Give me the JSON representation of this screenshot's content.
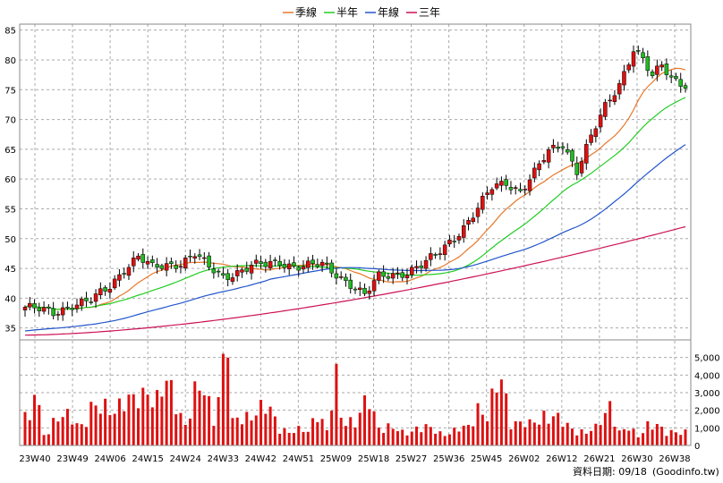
{
  "chart_data": {
    "type": "candlestick",
    "legend": [
      {
        "name": "季線",
        "color": "#e8782a"
      },
      {
        "name": "半年",
        "color": "#22cc22"
      },
      {
        "name": "年線",
        "color": "#2255cc"
      },
      {
        "name": "三年",
        "color": "#cc1155"
      }
    ],
    "price_axis": {
      "ylim": [
        33,
        86
      ],
      "ticks": [
        35,
        40,
        45,
        50,
        55,
        60,
        65,
        70,
        75,
        80,
        85
      ]
    },
    "volume_axis": {
      "ylim": [
        0,
        6000
      ],
      "ticks": [
        0,
        1000,
        2000,
        3000,
        4000,
        5000
      ],
      "tick_labels": [
        "0",
        "1,000",
        "2,000",
        "3,000",
        "4,000",
        "5,000"
      ]
    },
    "x_tick_labels": [
      "23W40",
      "23W49",
      "24W06",
      "24W15",
      "24W24",
      "24W33",
      "24W42",
      "24W51",
      "25W09",
      "25W18",
      "25W27",
      "25W36",
      "25W45",
      "26W02",
      "26W12",
      "26W21",
      "26W30",
      "26W38"
    ],
    "price_anchors": [
      [
        0,
        38.5
      ],
      [
        6,
        37.5
      ],
      [
        10,
        39
      ],
      [
        14,
        39.5
      ],
      [
        18,
        42
      ],
      [
        21,
        45
      ],
      [
        24,
        47
      ],
      [
        27,
        45
      ],
      [
        30,
        45.5
      ],
      [
        33,
        46
      ],
      [
        36,
        47.5
      ],
      [
        39,
        45
      ],
      [
        42,
        43.5
      ],
      [
        45,
        44.5
      ],
      [
        48,
        45.5
      ],
      [
        51,
        45.5
      ],
      [
        54,
        46
      ],
      [
        57,
        45.5
      ],
      [
        60,
        45.5
      ],
      [
        63,
        45.5
      ],
      [
        66,
        44
      ],
      [
        69,
        42.5
      ],
      [
        72,
        40.5
      ],
      [
        75,
        43.5
      ],
      [
        78,
        44
      ],
      [
        81,
        44.5
      ],
      [
        84,
        45.5
      ],
      [
        87,
        47
      ],
      [
        90,
        49.5
      ],
      [
        93,
        52
      ],
      [
        96,
        55
      ],
      [
        99,
        58.5
      ],
      [
        102,
        59.5
      ],
      [
        105,
        58
      ],
      [
        108,
        61
      ],
      [
        111,
        64.5
      ],
      [
        114,
        66
      ],
      [
        117,
        61.5
      ],
      [
        120,
        67
      ],
      [
        123,
        72
      ],
      [
        126,
        76
      ],
      [
        129,
        82
      ],
      [
        131,
        80
      ],
      [
        133,
        77
      ],
      [
        135,
        79
      ],
      [
        137,
        77
      ],
      [
        140,
        76
      ]
    ],
    "volume_anchors": [
      [
        0,
        1900
      ],
      [
        1,
        1100
      ],
      [
        2,
        3200
      ],
      [
        3,
        1900
      ],
      [
        4,
        600
      ],
      [
        6,
        1400
      ],
      [
        8,
        1600
      ],
      [
        12,
        1200
      ],
      [
        14,
        2100
      ],
      [
        16,
        1900
      ],
      [
        19,
        2300
      ],
      [
        21,
        2500
      ],
      [
        23,
        2300
      ],
      [
        25,
        2900
      ],
      [
        26,
        3500
      ],
      [
        28,
        2500
      ],
      [
        30,
        3300
      ],
      [
        32,
        2600
      ],
      [
        34,
        1200
      ],
      [
        36,
        2700
      ],
      [
        38,
        3100
      ],
      [
        40,
        1700
      ],
      [
        43,
        5700
      ],
      [
        44,
        1200
      ],
      [
        46,
        1700
      ],
      [
        50,
        1900
      ],
      [
        52,
        2000
      ],
      [
        54,
        1100
      ],
      [
        56,
        700
      ],
      [
        60,
        900
      ],
      [
        62,
        2000
      ],
      [
        64,
        700
      ],
      [
        66,
        3700
      ],
      [
        67,
        1800
      ],
      [
        70,
        1200
      ],
      [
        73,
        2600
      ],
      [
        75,
        1100
      ],
      [
        77,
        1000
      ],
      [
        80,
        700
      ],
      [
        83,
        1000
      ],
      [
        86,
        900
      ],
      [
        88,
        700
      ],
      [
        91,
        800
      ],
      [
        94,
        1000
      ],
      [
        96,
        2300
      ],
      [
        98,
        1600
      ],
      [
        101,
        3800
      ],
      [
        103,
        1500
      ],
      [
        105,
        1200
      ],
      [
        107,
        1100
      ],
      [
        110,
        1800
      ],
      [
        112,
        1600
      ],
      [
        114,
        1200
      ],
      [
        117,
        900
      ],
      [
        119,
        700
      ],
      [
        121,
        900
      ],
      [
        124,
        2500
      ],
      [
        126,
        700
      ],
      [
        128,
        900
      ],
      [
        130,
        600
      ],
      [
        132,
        1200
      ],
      [
        134,
        1000
      ],
      [
        136,
        700
      ],
      [
        138,
        900
      ],
      [
        140,
        700
      ]
    ],
    "footer": "資料日期: 09/18",
    "source": "(Goodinfo.tw)"
  }
}
